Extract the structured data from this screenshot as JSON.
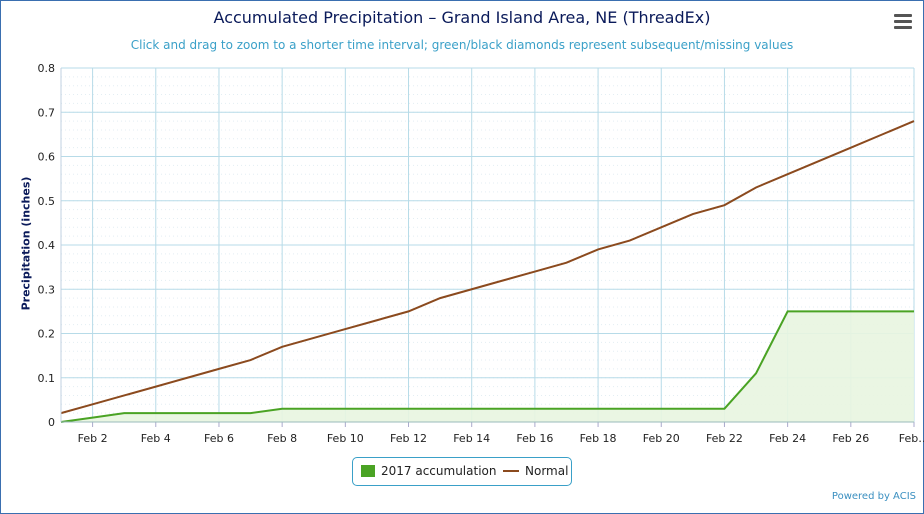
{
  "title": "Accumulated Precipitation – Grand Island Area, NE (ThreadEx)",
  "subtitle": "Click and drag to zoom to a shorter time interval; green/black diamonds represent subsequent/missing values",
  "menu_icon": "hamburger-menu-icon",
  "credits": "Powered by ACIS",
  "colors": {
    "accumulation": "#4aa324",
    "normal": "#8b4a1e",
    "area_fill": "#e8f5e0",
    "grid": "#b7dbe8",
    "minor_grid": "#e3eef3"
  },
  "legend": {
    "accumulation_label": "2017 accumulation",
    "normal_label": "Normal"
  },
  "chart_data": {
    "type": "line",
    "title": "Accumulated Precipitation – Grand Island Area, NE (ThreadEx)",
    "ylabel": "Precipitation (inches)",
    "xlabel": "",
    "ylim": [
      0,
      0.8
    ],
    "yticks": [
      "0",
      "0.1",
      "0.2",
      "0.3",
      "0.4",
      "0.5",
      "0.6",
      "0.7",
      "0.8"
    ],
    "xticks": [
      {
        "day": 2,
        "label": "Feb 2"
      },
      {
        "day": 4,
        "label": "Feb 4"
      },
      {
        "day": 6,
        "label": "Feb 6"
      },
      {
        "day": 8,
        "label": "Feb 8"
      },
      {
        "day": 10,
        "label": "Feb 10"
      },
      {
        "day": 12,
        "label": "Feb 12"
      },
      {
        "day": 14,
        "label": "Feb 14"
      },
      {
        "day": 16,
        "label": "Feb 16"
      },
      {
        "day": 18,
        "label": "Feb 18"
      },
      {
        "day": 20,
        "label": "Feb 20"
      },
      {
        "day": 22,
        "label": "Feb 22"
      },
      {
        "day": 24,
        "label": "Feb 24"
      },
      {
        "day": 26,
        "label": "Feb 26"
      },
      {
        "day": 28,
        "label": "Feb…"
      }
    ],
    "x_range": [
      1,
      28
    ],
    "grid": true,
    "legend_position": "bottom-center",
    "series": [
      {
        "name": "2017 accumulation",
        "type": "area",
        "points": [
          [
            1,
            0
          ],
          [
            2,
            0.01
          ],
          [
            3,
            0.02
          ],
          [
            4,
            0.02
          ],
          [
            5,
            0.02
          ],
          [
            6,
            0.02
          ],
          [
            7,
            0.02
          ],
          [
            8,
            0.03
          ],
          [
            9,
            0.03
          ],
          [
            10,
            0.03
          ],
          [
            11,
            0.03
          ],
          [
            12,
            0.03
          ],
          [
            13,
            0.03
          ],
          [
            14,
            0.03
          ],
          [
            15,
            0.03
          ],
          [
            16,
            0.03
          ],
          [
            17,
            0.03
          ],
          [
            18,
            0.03
          ],
          [
            19,
            0.03
          ],
          [
            20,
            0.03
          ],
          [
            21,
            0.03
          ],
          [
            22,
            0.03
          ],
          [
            23,
            0.11
          ],
          [
            24,
            0.25
          ],
          [
            25,
            0.25
          ],
          [
            26,
            0.25
          ],
          [
            27,
            0.25
          ],
          [
            28,
            0.25
          ]
        ]
      },
      {
        "name": "Normal",
        "type": "line",
        "points": [
          [
            1,
            0.02
          ],
          [
            2,
            0.04
          ],
          [
            3,
            0.06
          ],
          [
            4,
            0.08
          ],
          [
            5,
            0.1
          ],
          [
            6,
            0.12
          ],
          [
            7,
            0.14
          ],
          [
            8,
            0.17
          ],
          [
            9,
            0.19
          ],
          [
            10,
            0.21
          ],
          [
            11,
            0.23
          ],
          [
            12,
            0.25
          ],
          [
            13,
            0.28
          ],
          [
            14,
            0.3
          ],
          [
            15,
            0.32
          ],
          [
            16,
            0.34
          ],
          [
            17,
            0.36
          ],
          [
            18,
            0.39
          ],
          [
            19,
            0.41
          ],
          [
            20,
            0.44
          ],
          [
            21,
            0.47
          ],
          [
            22,
            0.49
          ],
          [
            23,
            0.53
          ],
          [
            24,
            0.56
          ],
          [
            25,
            0.59
          ],
          [
            26,
            0.62
          ],
          [
            27,
            0.65
          ],
          [
            28,
            0.68
          ]
        ]
      }
    ]
  }
}
